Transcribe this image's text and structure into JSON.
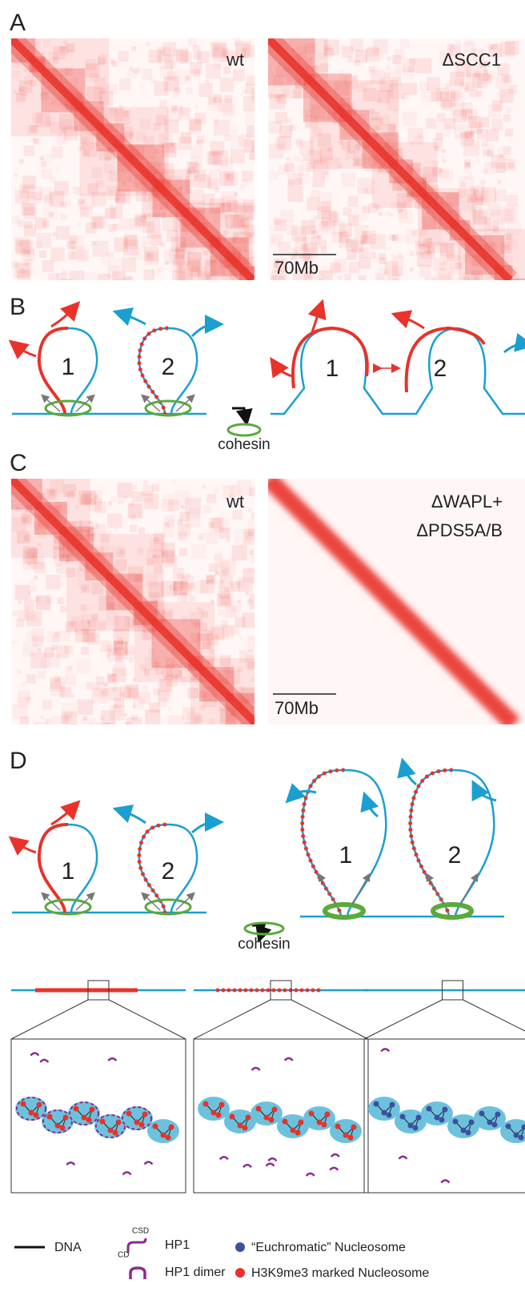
{
  "panel_a": {
    "label": "A",
    "left_map": "wt",
    "right_map": "ΔSCC1",
    "scale_bar": "70Mb"
  },
  "panel_b": {
    "label": "B",
    "loops_before": [
      "1",
      "2"
    ],
    "loops_after": [
      "1",
      "2"
    ],
    "factor": "cohesin"
  },
  "panel_c": {
    "label": "C",
    "left_map": "wt",
    "right_map": [
      "ΔWAPL+",
      "ΔPDS5A/B"
    ],
    "scale_bar": "70Mb"
  },
  "panel_d": {
    "label": "D",
    "loops_before": [
      "1",
      "2"
    ],
    "loops_after": [
      "1",
      "2"
    ],
    "factor": "cohesin"
  },
  "legend": {
    "dna": "DNA",
    "hp1_csd": "CSD",
    "hp1_cd": "CD",
    "hp1": "HP1",
    "hp1_dimer": "HP1 dimer",
    "euchromatic": "“Euchromatic” Nucleosome",
    "h3k9me3": "H3K9me3 marked Nucleosome"
  }
}
